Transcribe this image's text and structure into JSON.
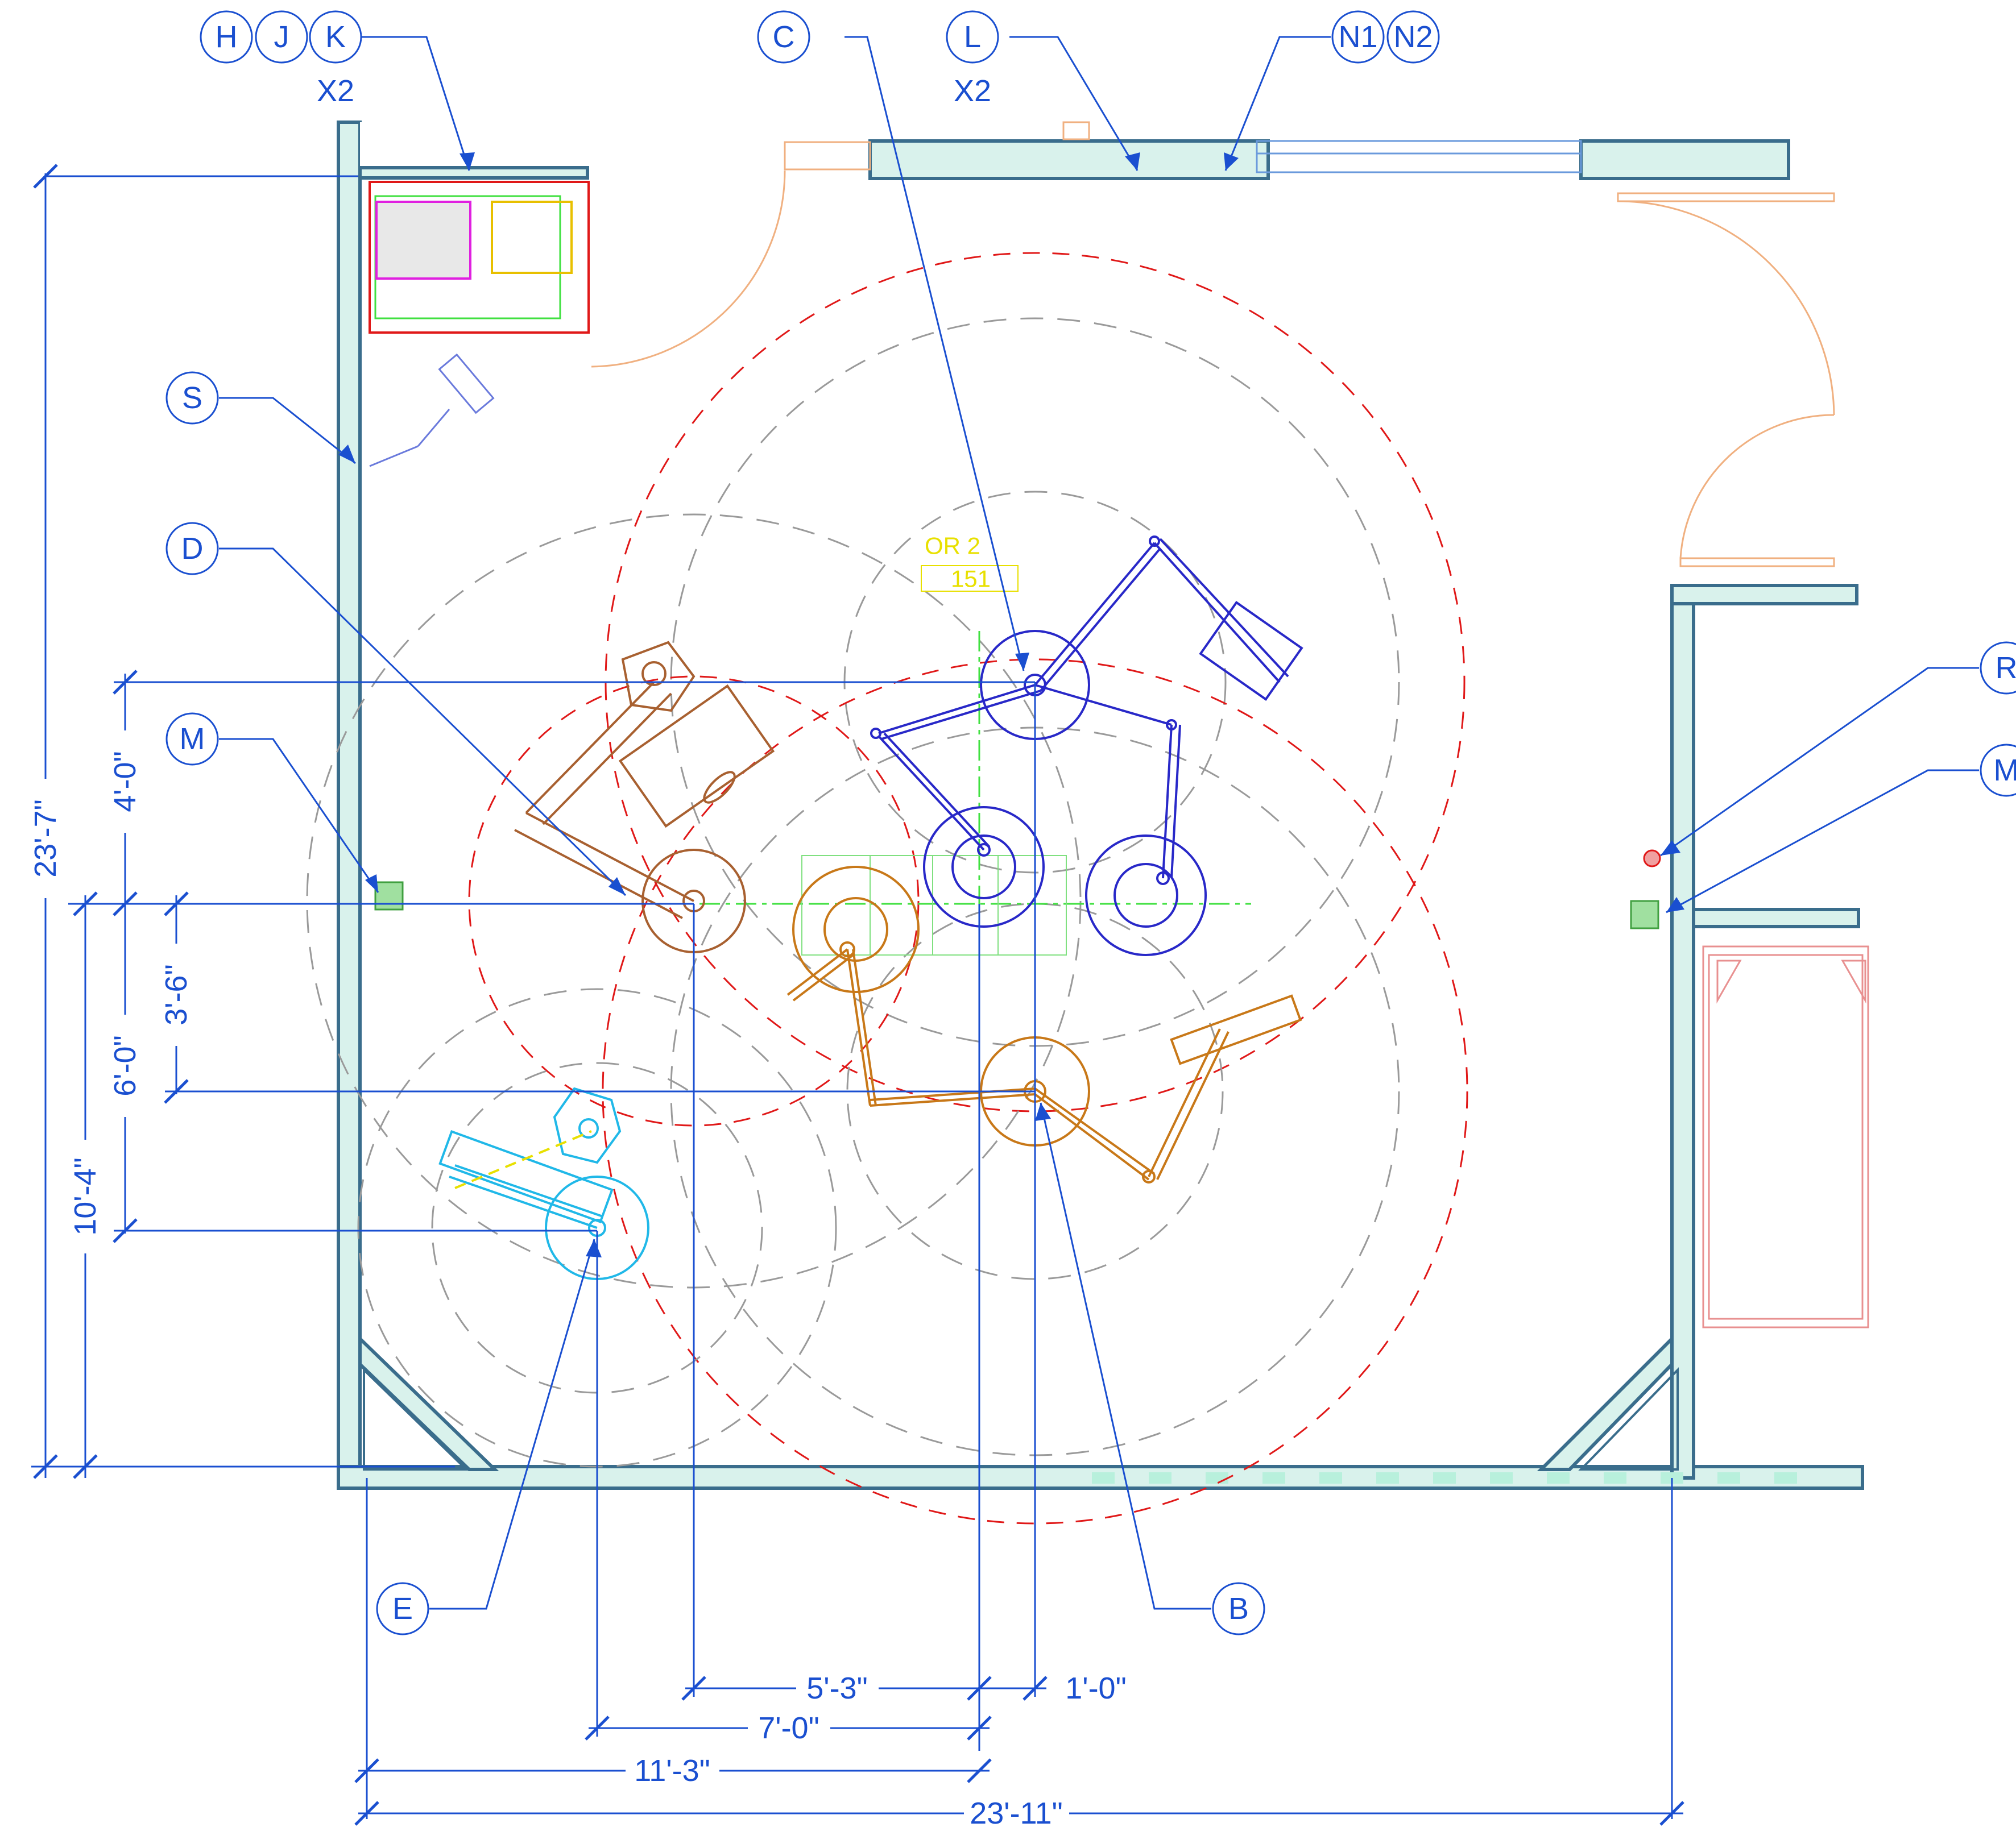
{
  "room": {
    "name": "OR 2",
    "number": "151"
  },
  "tags": {
    "h": "H",
    "j": "J",
    "k": "K",
    "hjk_qty": "X2",
    "c": "C",
    "l": "L",
    "l_qty": "X2",
    "n1": "N1",
    "n2": "N2",
    "s": "S",
    "d": "D",
    "m_left": "M",
    "e": "E",
    "b": "B",
    "r": "R",
    "m_right": "M"
  },
  "dimensions": {
    "d_23_7": "23'-7\"",
    "d_4_0": "4'-0\"",
    "d_3_6": "3'-6\"",
    "d_6_0": "6'-0\"",
    "d_10_4": "10'-4\"",
    "d_5_3": "5'-3\"",
    "d_1_0": "1'-0\"",
    "d_7_0": "7'-0\"",
    "d_11_3": "11'-3\"",
    "d_23_11": "23'-11\""
  },
  "colors": {
    "annotation": "#1a4fd0",
    "wall": "#3a6d8c",
    "wall_fill": "#d9f2ec",
    "swing_red": "#e01818",
    "swing_grey": "#9a9a9a",
    "boom_blue": "#2828c8",
    "boom_orange": "#c87818",
    "boom_brown": "#a86030",
    "boom_cyan": "#20b8e8",
    "room_tag": "#e8e000",
    "centerline_green": "#40e040",
    "door_orange": "#f0b080"
  }
}
